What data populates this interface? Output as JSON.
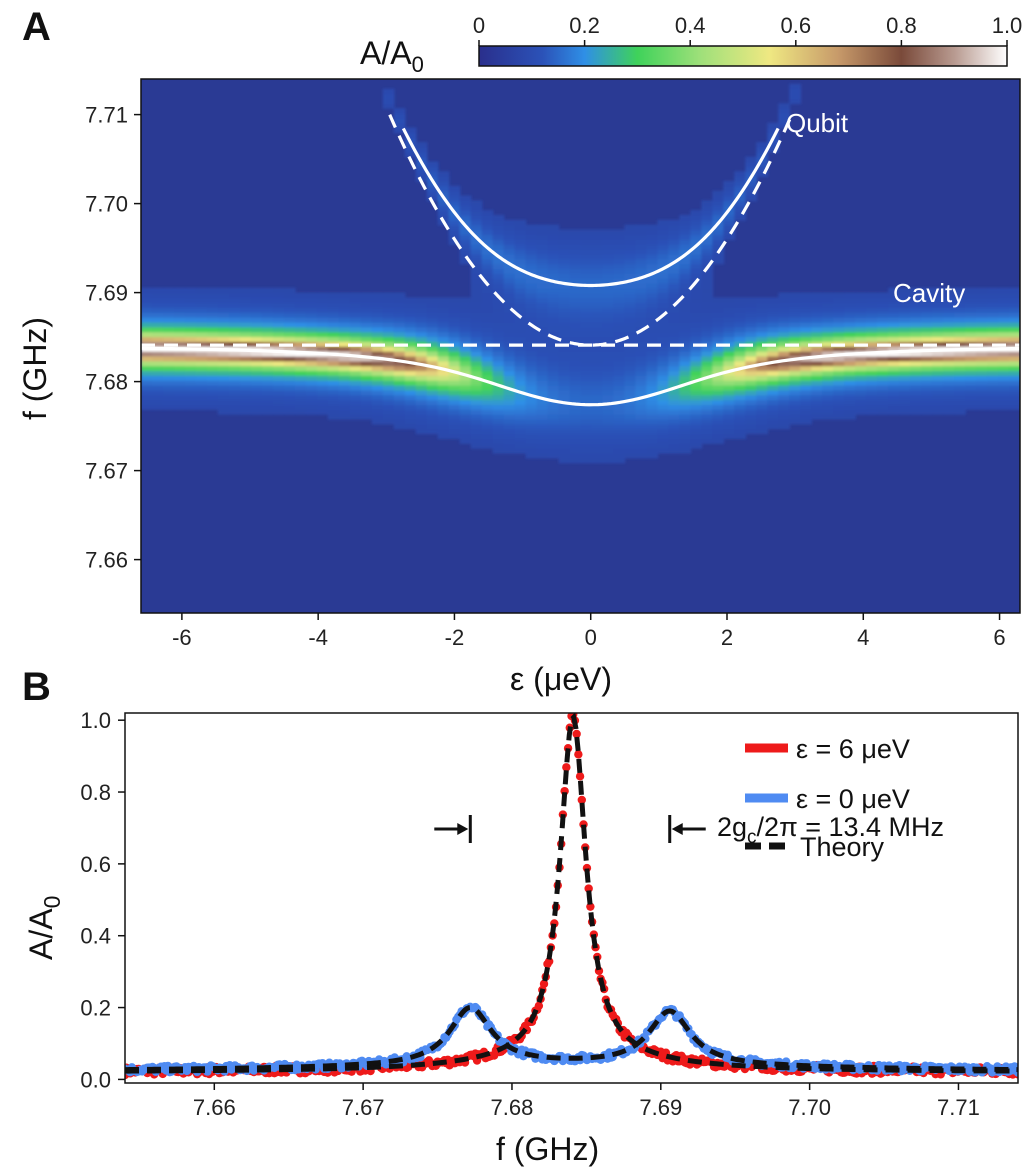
{
  "colors": {
    "heatmap_low": "#2a3a94",
    "heatmap_mid_blue": "#2f8fe6",
    "heatmap_green": "#3fd25a",
    "heatmap_yellow": "#efe882",
    "heatmap_brown": "#7a4a3a",
    "heatmap_high": "#ffffff",
    "red_series": "#ee1a1a",
    "blue_series": "#4f8bf2",
    "theory": "#111111"
  },
  "chart_data": [
    {
      "panel": "A",
      "type": "heatmap",
      "xlabel": "ε (μeV)",
      "ylabel": "f (GHz)",
      "xlim": [
        -6.6,
        6.3
      ],
      "ylim": [
        7.654,
        7.714
      ],
      "x_ticks": [
        "-6",
        "-4",
        "-2",
        "0",
        "2",
        "4",
        "6"
      ],
      "x_tick_values": [
        -6,
        -4,
        -2,
        0,
        2,
        4,
        6
      ],
      "y_ticks": [
        "7.66",
        "7.67",
        "7.68",
        "7.69",
        "7.70",
        "7.71"
      ],
      "y_tick_values": [
        7.66,
        7.67,
        7.68,
        7.69,
        7.7,
        7.71
      ],
      "colorbar": {
        "label_main": "A/A",
        "label_sub": "0",
        "range": [
          0,
          1.0
        ],
        "ticks": [
          "0",
          "0.2",
          "0.4",
          "0.6",
          "0.8",
          "1.0"
        ],
        "tick_values": [
          0,
          0.2,
          0.4,
          0.6,
          0.8,
          1.0
        ]
      },
      "model": {
        "cavity_frequency_ghz": 7.6841,
        "qubit_min_frequency_ghz": 7.6841,
        "qubit_slope": 0.0085,
        "coupling_ghz": 0.0067
      },
      "annotations": {
        "qubit": "Qubit",
        "cavity": "Cavity"
      },
      "lines": [
        {
          "name": "upper dressed state",
          "style": "solid",
          "color": "white"
        },
        {
          "name": "lower dressed state",
          "style": "solid",
          "color": "white"
        },
        {
          "name": "bare qubit",
          "style": "dashed",
          "color": "white"
        },
        {
          "name": "bare cavity",
          "style": "dashed",
          "color": "white"
        }
      ]
    },
    {
      "panel": "B",
      "type": "line",
      "xlabel": "f (GHz)",
      "ylabel_main": "A/A",
      "ylabel_sub": "0",
      "xlim": [
        7.654,
        7.714
      ],
      "ylim": [
        -0.01,
        1.02
      ],
      "x_ticks": [
        "7.66",
        "7.67",
        "7.68",
        "7.69",
        "7.70",
        "7.71"
      ],
      "x_tick_values": [
        7.66,
        7.67,
        7.68,
        7.69,
        7.7,
        7.71
      ],
      "y_ticks": [
        "0.0",
        "0.2",
        "0.4",
        "0.6",
        "0.8",
        "1.0"
      ],
      "y_tick_values": [
        0.0,
        0.2,
        0.4,
        0.6,
        0.8,
        1.0
      ],
      "series": [
        {
          "name": "ε = 6 μeV",
          "peak_frequency_ghz": 7.6841,
          "peak_value": 0.98,
          "baseline": 0.02
        },
        {
          "name": "ε = 0 μeV",
          "peak_frequencies_ghz": [
            7.6772,
            7.6906
          ],
          "peak_values": [
            0.18,
            0.17
          ],
          "baseline": 0.02
        },
        {
          "name": "Theory"
        }
      ],
      "annotation": {
        "text_main": "2g",
        "text_sub": "c",
        "text_rest": "/2π = 13.4 MHz",
        "left_marker_ghz": 7.6772,
        "right_marker_ghz": 7.6906
      }
    }
  ],
  "panel_labels": {
    "a": "A",
    "b": "B"
  }
}
